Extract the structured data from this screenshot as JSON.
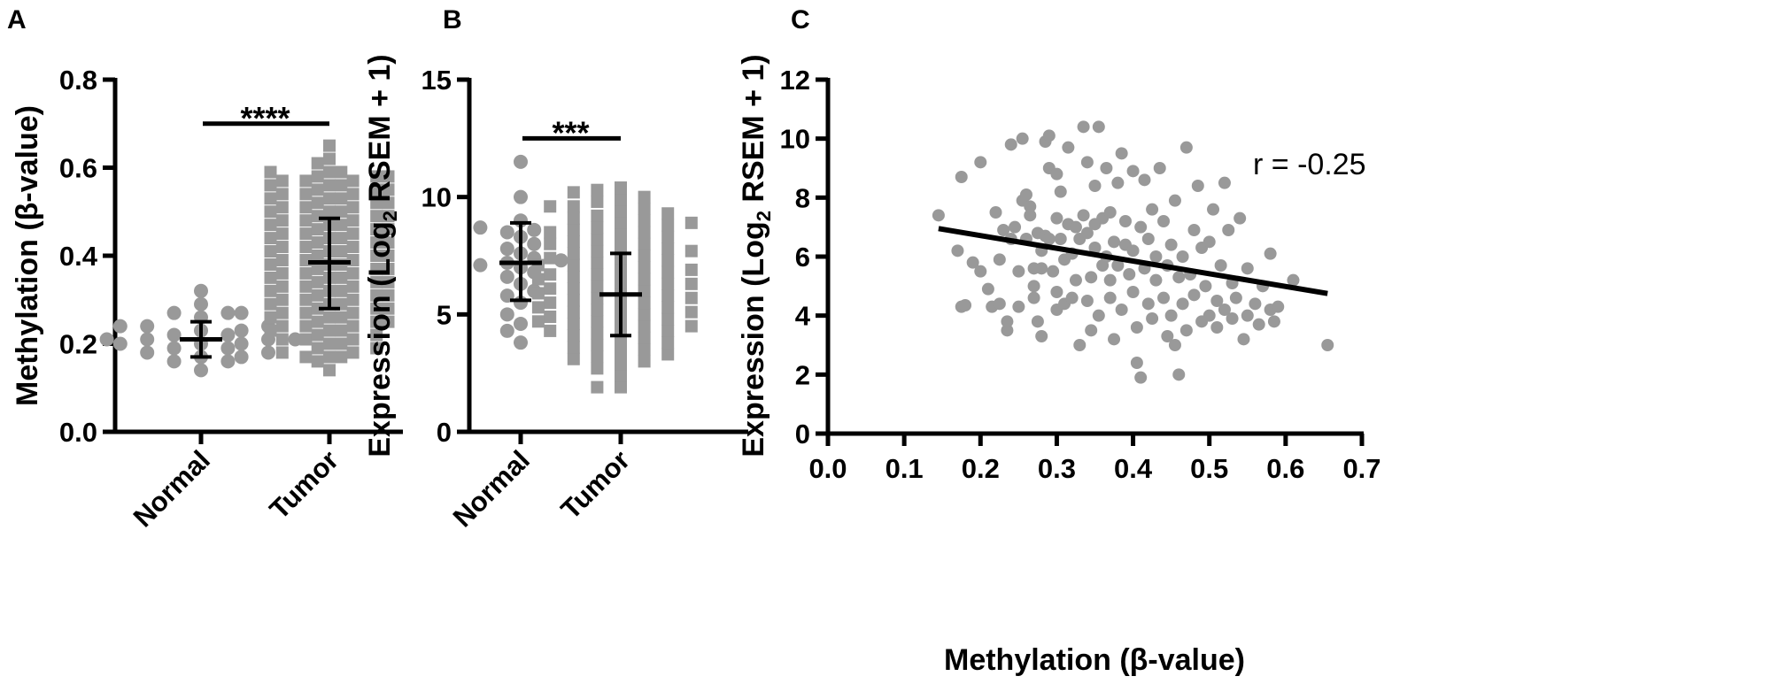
{
  "colors": {
    "points": "#999999",
    "axis": "#000000",
    "bars": "#000000"
  },
  "chart_data": [
    {
      "panel": "A",
      "type": "scatter",
      "subtype": "beeswarm with mean ± SD",
      "ylabel": "Methylation (β-value)",
      "ylim": [
        0,
        0.8
      ],
      "yticks": [
        "0.0",
        "0.2",
        "0.4",
        "0.6",
        "0.8"
      ],
      "ytick_values": [
        0,
        0.2,
        0.4,
        0.6,
        0.8
      ],
      "categories": [
        "Normal",
        "Tumor"
      ],
      "markers": [
        "circle",
        "square"
      ],
      "significance": {
        "label": "****",
        "between": [
          "Normal",
          "Tumor"
        ],
        "y": 0.7
      },
      "summary": [
        {
          "category": "Normal",
          "mean": 0.21,
          "sd_low": 0.17,
          "sd_high": 0.25
        },
        {
          "category": "Tumor",
          "mean": 0.385,
          "sd_low": 0.28,
          "sd_high": 0.485
        }
      ],
      "groups": [
        {
          "category": "Normal",
          "values": [
            0.32,
            0.29,
            0.27,
            0.27,
            0.26,
            0.27,
            0.24,
            0.24,
            0.23,
            0.23,
            0.24,
            0.22,
            0.21,
            0.21,
            0.2,
            0.21,
            0.21,
            0.2,
            0.19,
            0.19,
            0.18,
            0.18,
            0.17,
            0.17,
            0.16,
            0.16,
            0.14,
            0.22,
            0.2
          ]
        },
        {
          "category": "Tumor",
          "values": [
            0.65,
            0.62,
            0.61,
            0.59,
            0.59,
            0.59,
            0.58,
            0.58,
            0.58,
            0.57,
            0.57,
            0.57,
            0.56,
            0.56,
            0.56,
            0.55,
            0.55,
            0.55,
            0.54,
            0.54,
            0.54,
            0.53,
            0.53,
            0.53,
            0.52,
            0.52,
            0.52,
            0.51,
            0.51,
            0.51,
            0.5,
            0.5,
            0.5,
            0.49,
            0.49,
            0.49,
            0.48,
            0.48,
            0.48,
            0.47,
            0.47,
            0.47,
            0.46,
            0.46,
            0.46,
            0.45,
            0.45,
            0.45,
            0.44,
            0.44,
            0.44,
            0.43,
            0.43,
            0.43,
            0.42,
            0.42,
            0.42,
            0.41,
            0.41,
            0.41,
            0.4,
            0.4,
            0.4,
            0.39,
            0.39,
            0.39,
            0.38,
            0.38,
            0.38,
            0.37,
            0.37,
            0.37,
            0.36,
            0.36,
            0.36,
            0.35,
            0.35,
            0.35,
            0.34,
            0.34,
            0.34,
            0.33,
            0.33,
            0.33,
            0.32,
            0.32,
            0.32,
            0.31,
            0.31,
            0.31,
            0.3,
            0.3,
            0.3,
            0.29,
            0.29,
            0.29,
            0.28,
            0.28,
            0.28,
            0.27,
            0.27,
            0.27,
            0.26,
            0.26,
            0.26,
            0.25,
            0.25,
            0.25,
            0.24,
            0.24,
            0.24,
            0.23,
            0.23,
            0.23,
            0.22,
            0.22,
            0.21,
            0.21,
            0.21,
            0.2,
            0.2,
            0.19,
            0.19,
            0.18,
            0.18,
            0.17,
            0.17,
            0.17,
            0.16,
            0.14
          ]
        }
      ]
    },
    {
      "panel": "B",
      "type": "scatter",
      "subtype": "beeswarm with mean ± SD",
      "ylabel_main": "Expression (Log",
      "ylabel_sub": "2",
      "ylabel_end": " RSEM + 1)",
      "ylim": [
        0,
        15
      ],
      "yticks": [
        "0",
        "5",
        "10",
        "15"
      ],
      "ytick_values": [
        0,
        5,
        10,
        15
      ],
      "categories": [
        "Normal",
        "Tumor"
      ],
      "markers": [
        "circle",
        "square"
      ],
      "significance": {
        "label": "***",
        "between": [
          "Normal",
          "Tumor"
        ],
        "y": 12.5
      },
      "summary": [
        {
          "category": "Normal",
          "mean": 7.2,
          "sd_low": 5.6,
          "sd_high": 8.9
        },
        {
          "category": "Tumor",
          "mean": 5.85,
          "sd_low": 4.1,
          "sd_high": 7.6
        }
      ],
      "groups": [
        {
          "category": "Normal",
          "values": [
            11.5,
            10.0,
            9.0,
            8.7,
            8.6,
            8.5,
            8.3,
            8.0,
            7.8,
            7.6,
            7.4,
            7.3,
            7.2,
            7.1,
            7.0,
            6.8,
            6.6,
            6.3,
            6.0,
            5.8,
            5.5,
            5.0,
            4.6,
            4.3,
            3.8
          ]
        },
        {
          "category": "Tumor",
          "values": [
            10.4,
            10.3,
            10.2,
            10.0,
            9.9,
            9.8,
            9.6,
            9.6,
            9.5,
            9.4,
            9.3,
            9.2,
            9.1,
            9.0,
            8.9,
            8.9,
            8.8,
            8.7,
            8.6,
            8.5,
            8.5,
            8.4,
            8.3,
            8.2,
            8.1,
            8.0,
            8.0,
            7.9,
            7.8,
            7.7,
            7.7,
            7.6,
            7.5,
            7.4,
            7.4,
            7.3,
            7.2,
            7.1,
            7.1,
            7.0,
            6.9,
            6.9,
            6.8,
            6.7,
            6.7,
            6.6,
            6.5,
            6.5,
            6.4,
            6.3,
            6.3,
            6.2,
            6.1,
            6.1,
            6.0,
            5.9,
            5.9,
            5.8,
            5.7,
            5.7,
            5.6,
            5.5,
            5.5,
            5.4,
            5.3,
            5.3,
            5.2,
            5.1,
            5.1,
            5.0,
            4.9,
            4.9,
            4.8,
            4.7,
            4.7,
            4.6,
            4.5,
            4.5,
            4.4,
            4.3,
            4.3,
            4.2,
            4.1,
            4.0,
            3.9,
            3.8,
            3.7,
            3.6,
            3.5,
            3.4,
            3.3,
            3.2,
            3.1,
            3.0,
            2.9,
            2.7,
            2.4,
            1.9,
            1.9
          ]
        }
      ]
    },
    {
      "panel": "C",
      "type": "scatter",
      "xlabel": "Methylation (β-value)",
      "ylabel_main": "Expression (Log",
      "ylabel_sub": "2",
      "ylabel_end": " RSEM + 1)",
      "xlim": [
        0,
        0.7
      ],
      "ylim": [
        0,
        12
      ],
      "xticks": [
        "0.0",
        "0.1",
        "0.2",
        "0.3",
        "0.4",
        "0.5",
        "0.6",
        "0.7"
      ],
      "xtick_values": [
        0,
        0.1,
        0.2,
        0.3,
        0.4,
        0.5,
        0.6,
        0.7
      ],
      "yticks": [
        "0",
        "2",
        "4",
        "6",
        "8",
        "10",
        "12"
      ],
      "ytick_values": [
        0,
        2,
        4,
        6,
        8,
        10,
        12
      ],
      "annotation": "r = -0.25",
      "regression": {
        "x": [
          0.145,
          0.655
        ],
        "y": [
          6.95,
          4.75
        ]
      },
      "points": [
        [
          0.145,
          7.4
        ],
        [
          0.17,
          6.2
        ],
        [
          0.175,
          8.7
        ],
        [
          0.175,
          4.3
        ],
        [
          0.18,
          4.35
        ],
        [
          0.19,
          5.8
        ],
        [
          0.2,
          9.2
        ],
        [
          0.2,
          5.5
        ],
        [
          0.21,
          4.9
        ],
        [
          0.215,
          4.3
        ],
        [
          0.22,
          7.5
        ],
        [
          0.225,
          4.4
        ],
        [
          0.225,
          5.9
        ],
        [
          0.23,
          6.9
        ],
        [
          0.235,
          3.5
        ],
        [
          0.235,
          3.8
        ],
        [
          0.24,
          6.6
        ],
        [
          0.24,
          9.8
        ],
        [
          0.245,
          7.0
        ],
        [
          0.25,
          5.5
        ],
        [
          0.25,
          4.3
        ],
        [
          0.255,
          10.0
        ],
        [
          0.255,
          7.9
        ],
        [
          0.26,
          8.1
        ],
        [
          0.26,
          6.6
        ],
        [
          0.265,
          7.7
        ],
        [
          0.265,
          7.4
        ],
        [
          0.27,
          5.0
        ],
        [
          0.27,
          5.6
        ],
        [
          0.27,
          4.6
        ],
        [
          0.275,
          6.8
        ],
        [
          0.275,
          3.8
        ],
        [
          0.28,
          3.3
        ],
        [
          0.28,
          6.2
        ],
        [
          0.28,
          5.6
        ],
        [
          0.285,
          9.9
        ],
        [
          0.285,
          6.7
        ],
        [
          0.29,
          10.1
        ],
        [
          0.29,
          9.0
        ],
        [
          0.29,
          6.6
        ],
        [
          0.295,
          5.5
        ],
        [
          0.3,
          8.8
        ],
        [
          0.3,
          7.3
        ],
        [
          0.3,
          4.8
        ],
        [
          0.3,
          4.2
        ],
        [
          0.305,
          6.6
        ],
        [
          0.305,
          8.2
        ],
        [
          0.31,
          5.9
        ],
        [
          0.31,
          4.4
        ],
        [
          0.315,
          9.7
        ],
        [
          0.315,
          7.1
        ],
        [
          0.32,
          6.1
        ],
        [
          0.32,
          4.6
        ],
        [
          0.325,
          7.0
        ],
        [
          0.325,
          5.2
        ],
        [
          0.33,
          3.0
        ],
        [
          0.33,
          6.6
        ],
        [
          0.335,
          10.4
        ],
        [
          0.335,
          7.4
        ],
        [
          0.34,
          9.2
        ],
        [
          0.34,
          6.8
        ],
        [
          0.34,
          4.5
        ],
        [
          0.345,
          5.3
        ],
        [
          0.345,
          3.5
        ],
        [
          0.35,
          7.1
        ],
        [
          0.35,
          8.4
        ],
        [
          0.35,
          6.3
        ],
        [
          0.355,
          4.0
        ],
        [
          0.355,
          10.4
        ],
        [
          0.36,
          5.7
        ],
        [
          0.36,
          7.3
        ],
        [
          0.365,
          6.0
        ],
        [
          0.365,
          9.0
        ],
        [
          0.37,
          4.6
        ],
        [
          0.37,
          7.5
        ],
        [
          0.37,
          5.2
        ],
        [
          0.375,
          3.2
        ],
        [
          0.375,
          6.5
        ],
        [
          0.38,
          8.5
        ],
        [
          0.38,
          5.7
        ],
        [
          0.385,
          9.5
        ],
        [
          0.385,
          4.2
        ],
        [
          0.39,
          7.2
        ],
        [
          0.39,
          6.4
        ],
        [
          0.395,
          5.4
        ],
        [
          0.4,
          8.9
        ],
        [
          0.4,
          6.2
        ],
        [
          0.4,
          4.8
        ],
        [
          0.405,
          2.4
        ],
        [
          0.405,
          3.6
        ],
        [
          0.41,
          7.0
        ],
        [
          0.41,
          1.9
        ],
        [
          0.415,
          5.6
        ],
        [
          0.415,
          8.6
        ],
        [
          0.42,
          6.6
        ],
        [
          0.42,
          4.4
        ],
        [
          0.425,
          3.9
        ],
        [
          0.425,
          7.6
        ],
        [
          0.43,
          5.2
        ],
        [
          0.43,
          6.0
        ],
        [
          0.435,
          9.0
        ],
        [
          0.44,
          4.6
        ],
        [
          0.44,
          7.2
        ],
        [
          0.445,
          3.3
        ],
        [
          0.445,
          5.7
        ],
        [
          0.45,
          6.4
        ],
        [
          0.45,
          4.0
        ],
        [
          0.455,
          7.9
        ],
        [
          0.455,
          3.0
        ],
        [
          0.46,
          5.3
        ],
        [
          0.46,
          2.0
        ],
        [
          0.465,
          4.4
        ],
        [
          0.465,
          6.0
        ],
        [
          0.47,
          9.7
        ],
        [
          0.47,
          3.5
        ],
        [
          0.475,
          5.4
        ],
        [
          0.48,
          6.9
        ],
        [
          0.48,
          4.7
        ],
        [
          0.485,
          8.4
        ],
        [
          0.49,
          3.8
        ],
        [
          0.49,
          6.3
        ],
        [
          0.495,
          5.0
        ],
        [
          0.5,
          4.0
        ],
        [
          0.5,
          6.5
        ],
        [
          0.505,
          7.6
        ],
        [
          0.51,
          4.5
        ],
        [
          0.51,
          3.6
        ],
        [
          0.515,
          5.7
        ],
        [
          0.52,
          8.5
        ],
        [
          0.52,
          4.2
        ],
        [
          0.525,
          6.9
        ],
        [
          0.53,
          5.1
        ],
        [
          0.53,
          3.9
        ],
        [
          0.535,
          4.6
        ],
        [
          0.54,
          7.3
        ],
        [
          0.545,
          3.2
        ],
        [
          0.55,
          5.6
        ],
        [
          0.55,
          4.0
        ],
        [
          0.56,
          4.4
        ],
        [
          0.565,
          3.7
        ],
        [
          0.57,
          5.0
        ],
        [
          0.58,
          6.1
        ],
        [
          0.58,
          4.2
        ],
        [
          0.585,
          3.8
        ],
        [
          0.59,
          4.3
        ],
        [
          0.61,
          5.2
        ],
        [
          0.655,
          3.0
        ]
      ]
    }
  ],
  "panels": {
    "a": "A",
    "b": "B",
    "c": "C"
  }
}
